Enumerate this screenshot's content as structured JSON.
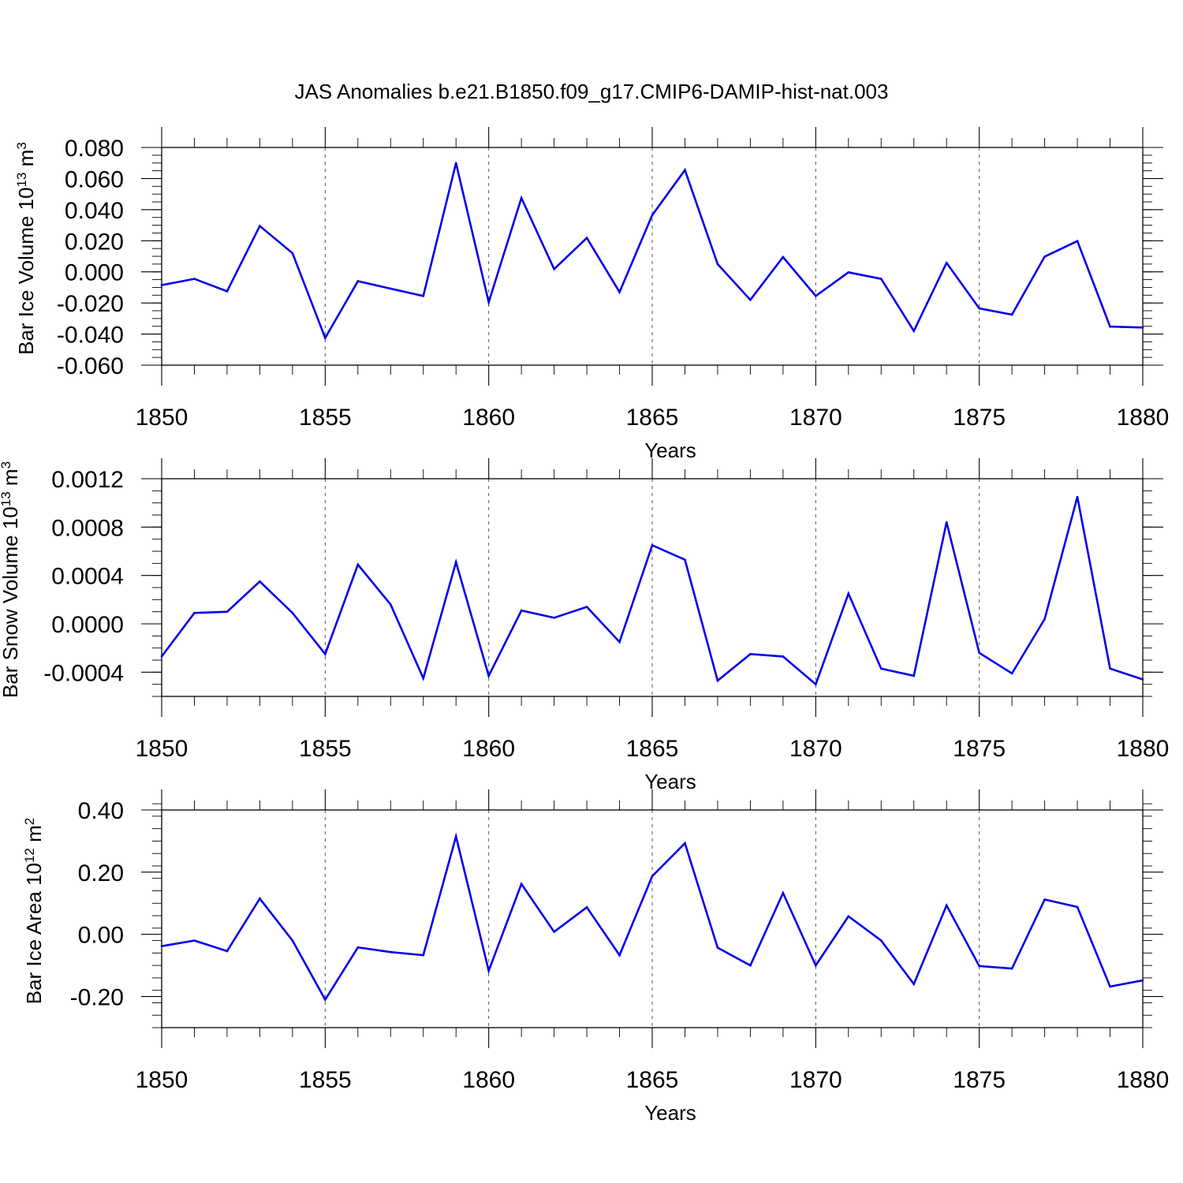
{
  "title": "JAS Anomalies b.e21.B1850.f09_g17.CMIP6-DAMIP-hist-nat.003",
  "colors": {
    "line": "#0000ee",
    "grid": "#555555",
    "axis": "#000000"
  },
  "chart_data": [
    {
      "type": "line",
      "xlabel": "Years",
      "ylabel": {
        "prefix": "Bar Ice Volume 10",
        "exponent": "13",
        "unit": " m",
        "unit_exponent": "3"
      },
      "xlim": [
        1850,
        1880
      ],
      "ylim": [
        -0.06,
        0.08
      ],
      "x_ticks": [
        "1850",
        "1855",
        "1860",
        "1865",
        "1870",
        "1875",
        "1880"
      ],
      "y_ticks": [
        {
          "value": 0.08,
          "label": "0.080"
        },
        {
          "value": 0.06,
          "label": "0.060"
        },
        {
          "value": 0.04,
          "label": "0.040"
        },
        {
          "value": 0.02,
          "label": "0.020"
        },
        {
          "value": 0.0,
          "label": "0.000"
        },
        {
          "value": -0.02,
          "label": "-0.020"
        },
        {
          "value": -0.04,
          "label": "-0.040"
        },
        {
          "value": -0.06,
          "label": "-0.060"
        }
      ],
      "y_minor_step": 0.005,
      "grid": "vertical-dashed",
      "x": [
        1850,
        1851,
        1852,
        1853,
        1854,
        1855,
        1856,
        1857,
        1858,
        1859,
        1860,
        1861,
        1862,
        1863,
        1864,
        1865,
        1866,
        1867,
        1868,
        1869,
        1870,
        1871,
        1872,
        1873,
        1874,
        1875,
        1876,
        1877,
        1878,
        1879,
        1880
      ],
      "values": [
        -0.0085,
        -0.0045,
        -0.0125,
        0.0295,
        0.012,
        -0.0425,
        -0.006,
        -0.0108,
        -0.0155,
        0.07,
        -0.0195,
        0.0475,
        0.0018,
        0.0218,
        -0.013,
        0.0365,
        0.0655,
        0.005,
        -0.018,
        0.0095,
        -0.0155,
        -0.0003,
        -0.0045,
        -0.038,
        0.0058,
        -0.0235,
        -0.0275,
        0.0098,
        0.0198,
        -0.0352,
        -0.0358
      ]
    },
    {
      "type": "line",
      "xlabel": "Years",
      "ylabel": {
        "prefix": "Bar Snow Volume 10",
        "exponent": "13",
        "unit": " m",
        "unit_exponent": "3"
      },
      "xlim": [
        1850,
        1880
      ],
      "ylim": [
        -0.0006,
        0.0012
      ],
      "x_ticks": [
        "1850",
        "1855",
        "1860",
        "1865",
        "1870",
        "1875",
        "1880"
      ],
      "y_ticks": [
        {
          "value": 0.0012,
          "label": "0.0012"
        },
        {
          "value": 0.0008,
          "label": "0.0008"
        },
        {
          "value": 0.0004,
          "label": "0.0004"
        },
        {
          "value": 0.0,
          "label": "0.0000"
        },
        {
          "value": -0.0004,
          "label": "-0.0004"
        }
      ],
      "y_minor_step": 0.0001,
      "grid": "vertical-dashed",
      "x": [
        1850,
        1851,
        1852,
        1853,
        1854,
        1855,
        1856,
        1857,
        1858,
        1859,
        1860,
        1861,
        1862,
        1863,
        1864,
        1865,
        1866,
        1867,
        1868,
        1869,
        1870,
        1871,
        1872,
        1873,
        1874,
        1875,
        1876,
        1877,
        1878,
        1879,
        1880
      ],
      "values": [
        -0.00027,
        9e-05,
        0.0001,
        0.00035,
        9e-05,
        -0.00025,
        0.00049,
        0.00016,
        -0.00045,
        0.00051,
        -0.00043,
        0.00011,
        5e-05,
        0.00014,
        -0.00015,
        0.00065,
        0.00053,
        -0.00047,
        -0.00025,
        -0.00027,
        -0.0005,
        0.00025,
        -0.00037,
        -0.00043,
        0.00084,
        -0.00024,
        -0.00041,
        4e-05,
        0.00105,
        -0.00037,
        -0.00046
      ]
    },
    {
      "type": "line",
      "xlabel": "Years",
      "ylabel": {
        "prefix": "Bar Ice Area 10",
        "exponent": "12",
        "unit": " m",
        "unit_exponent": "2"
      },
      "xlim": [
        1850,
        1880
      ],
      "ylim": [
        -0.3,
        0.4
      ],
      "x_ticks": [
        "1850",
        "1855",
        "1860",
        "1865",
        "1870",
        "1875",
        "1880"
      ],
      "y_ticks": [
        {
          "value": 0.4,
          "label": "0.40"
        },
        {
          "value": 0.2,
          "label": "0.20"
        },
        {
          "value": 0.0,
          "label": "0.00"
        },
        {
          "value": -0.2,
          "label": "-0.20"
        }
      ],
      "y_minor_step": 0.04,
      "grid": "vertical-dashed",
      "x": [
        1850,
        1851,
        1852,
        1853,
        1854,
        1855,
        1856,
        1857,
        1858,
        1859,
        1860,
        1861,
        1862,
        1863,
        1864,
        1865,
        1866,
        1867,
        1868,
        1869,
        1870,
        1871,
        1872,
        1873,
        1874,
        1875,
        1876,
        1877,
        1878,
        1879,
        1880
      ],
      "values": [
        -0.038,
        -0.02,
        -0.054,
        0.115,
        -0.02,
        -0.21,
        -0.042,
        -0.057,
        -0.067,
        0.315,
        -0.117,
        0.162,
        0.008,
        0.087,
        -0.067,
        0.187,
        0.293,
        -0.043,
        -0.1,
        0.133,
        -0.1,
        0.058,
        -0.02,
        -0.16,
        0.093,
        -0.102,
        -0.11,
        0.112,
        0.088,
        -0.168,
        -0.148
      ]
    }
  ]
}
